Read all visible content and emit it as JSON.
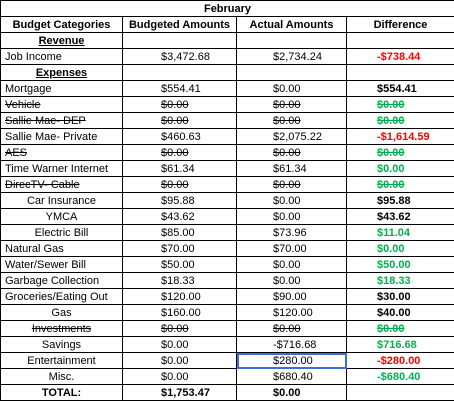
{
  "title": "February",
  "table": {
    "header": [
      "Budget Categories",
      "Budgeted Amounts",
      "Actual Amounts",
      "Difference"
    ],
    "rows": [
      {
        "section": true,
        "cells": [
          "Revenue"
        ]
      },
      {
        "cells": [
          "Job Income",
          "$3,472.68",
          "$2,734.24",
          "-$738.44"
        ],
        "diff_color": "#ff0000"
      },
      {
        "section": true,
        "cells": [
          "Expenses"
        ]
      },
      {
        "cells": [
          "Mortgage",
          "$554.41",
          "$0.00",
          "$554.41"
        ],
        "diff_color": "#000000"
      },
      {
        "cells": [
          "Vehicle",
          "$0.00",
          "$0.00",
          "$0.00"
        ],
        "diff_color": "#00b050",
        "struck": true
      },
      {
        "cells": [
          "Sallie Mae- DEP",
          "$0.00",
          "$0.00",
          "$0.00"
        ],
        "diff_color": "#00b050",
        "struck": true
      },
      {
        "cells": [
          "Sallie Mae- Private",
          "$460.63",
          "$2,075.22",
          "-$1,614.59"
        ],
        "diff_color": "#ff0000"
      },
      {
        "cells": [
          "AES",
          "$0.00",
          "$0.00",
          "$0.00"
        ],
        "diff_color": "#00b050",
        "struck": true
      },
      {
        "cells": [
          "Time Warner Internet",
          "$61.34",
          "$61.34",
          "$0.00"
        ],
        "diff_color": "#00b050"
      },
      {
        "cells": [
          "DirecTV- Cable",
          "$0.00",
          "$0.00",
          "$0.00"
        ],
        "diff_color": "#00b050",
        "struck": true
      },
      {
        "cells": [
          "Car Insurance",
          "$95.88",
          "$0.00",
          "$95.88"
        ],
        "diff_color": "#000000"
      },
      {
        "cells": [
          "YMCA",
          "$43.62",
          "$0.00",
          "$43.62"
        ],
        "diff_color": "#000000"
      },
      {
        "cells": [
          "Electric Bill",
          "$85.00",
          "$73.96",
          "$11.04"
        ],
        "diff_color": "#00b050"
      },
      {
        "cells": [
          "Natural Gas",
          "$70.00",
          "$70.00",
          "$0.00"
        ],
        "diff_color": "#00b050"
      },
      {
        "cells": [
          "Water/Sewer Bill",
          "$50.00",
          "$0.00",
          "$50.00"
        ],
        "diff_color": "#00b050"
      },
      {
        "cells": [
          "Garbage Collection",
          "$18.33",
          "$0.00",
          "$18.33"
        ],
        "diff_color": "#00b050"
      },
      {
        "cells": [
          "Groceries/Eating Out",
          "$120.00",
          "$90.00",
          "$30.00"
        ],
        "diff_color": "#000000"
      },
      {
        "cells": [
          "Gas",
          "$160.00",
          "$120.00",
          "$40.00"
        ],
        "diff_color": "#000000"
      },
      {
        "cells": [
          "Investments",
          "$0.00",
          "$0.00",
          "$0.00"
        ],
        "diff_color": "#00b050",
        "struck": true
      },
      {
        "cells": [
          "Savings",
          "$0.00",
          "-$716.68",
          "$716.68"
        ],
        "diff_color": "#00b050"
      },
      {
        "cells": [
          "Entertainment",
          "$0.00",
          "$280.00",
          "-$280.00"
        ],
        "diff_color": "#ff0000"
      },
      {
        "cells": [
          "Misc.",
          "$0.00",
          "$680.40",
          "-$680.40"
        ],
        "diff_color": "#00b050"
      },
      {
        "total": true,
        "cells": [
          "TOTAL:",
          "$1,753.47",
          "$0.00"
        ]
      }
    ]
  }
}
